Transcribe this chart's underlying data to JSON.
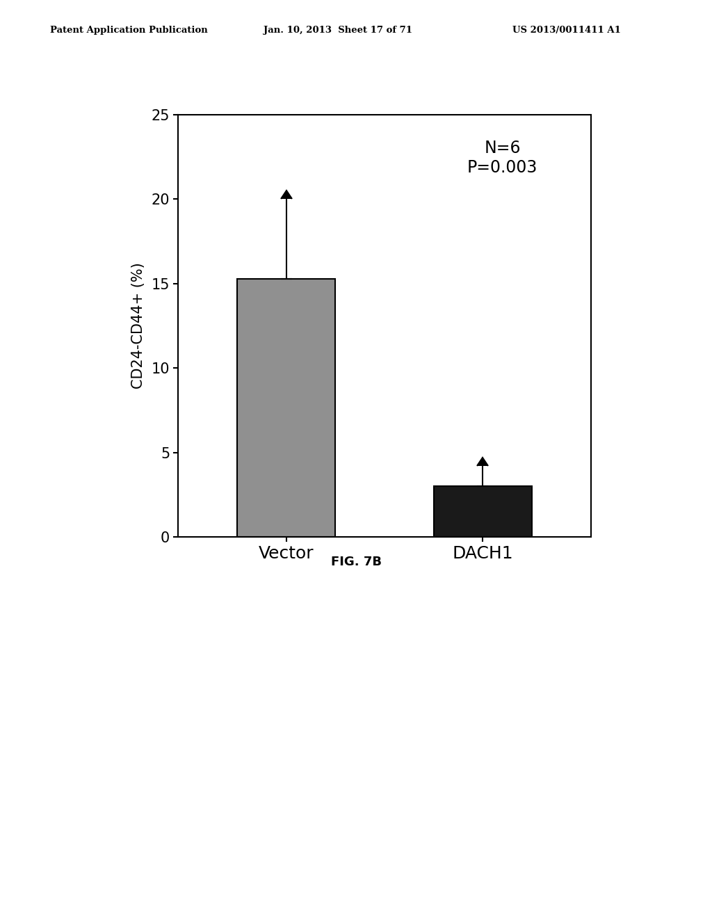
{
  "categories": [
    "Vector",
    "DACH1"
  ],
  "values": [
    15.3,
    3.0
  ],
  "errors": [
    4.7,
    1.2
  ],
  "bar_colors": [
    "#909090",
    "#1a1a1a"
  ],
  "bar_edge_colors": [
    "#000000",
    "#000000"
  ],
  "ylabel": "CD24-CD44+ (%)",
  "ylim": [
    0,
    25
  ],
  "yticks": [
    0,
    5,
    10,
    15,
    20,
    25
  ],
  "annotation_text": "N=6\nP=0.003",
  "figure_caption": "FIG. 7B",
  "header_left": "Patent Application Publication",
  "header_mid": "Jan. 10, 2013  Sheet 17 of 71",
  "header_right": "US 2013/0011411 A1",
  "bar_width": 0.5,
  "fig_width": 10.24,
  "fig_height": 13.2,
  "dpi": 100
}
